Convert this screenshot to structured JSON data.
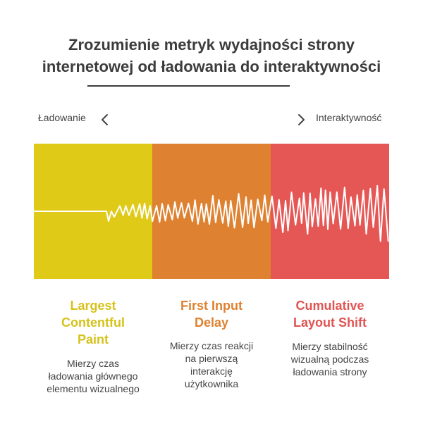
{
  "title": {
    "line1": "Zrozumienie metryk wydajności strony",
    "line2": "internetowej od ładowania do interaktywności"
  },
  "axis": {
    "left_label": "Ładowanie",
    "right_label": "Interaktywność",
    "left_icon": "chevron-left-icon",
    "right_icon": "chevron-right-icon"
  },
  "metrics": [
    {
      "title_lines": [
        "Largest",
        "Contentful",
        "Paint"
      ],
      "desc_lines": [
        "Mierzy czas",
        "ładowania głównego",
        "elementu wizualnego"
      ],
      "color": "#dfca17",
      "title_color": "#d6c21a"
    },
    {
      "title_lines": [
        "First Input",
        "Delay"
      ],
      "desc_lines": [
        "Mierzy czas reakcji",
        "na pierwszą",
        "interakcję",
        "użytkownika"
      ],
      "color": "#de8130",
      "title_color": "#de8130"
    },
    {
      "title_lines": [
        "Cumulative",
        "Layout Shift"
      ],
      "desc_lines": [
        "Mierzy stabilność",
        "wizualną podczas",
        "ładowania strony"
      ],
      "color": "#e55755",
      "title_color": "#e05452"
    }
  ],
  "colors": {
    "title": "#3c3c3c",
    "text": "#444444",
    "wave": "#ffffff"
  }
}
